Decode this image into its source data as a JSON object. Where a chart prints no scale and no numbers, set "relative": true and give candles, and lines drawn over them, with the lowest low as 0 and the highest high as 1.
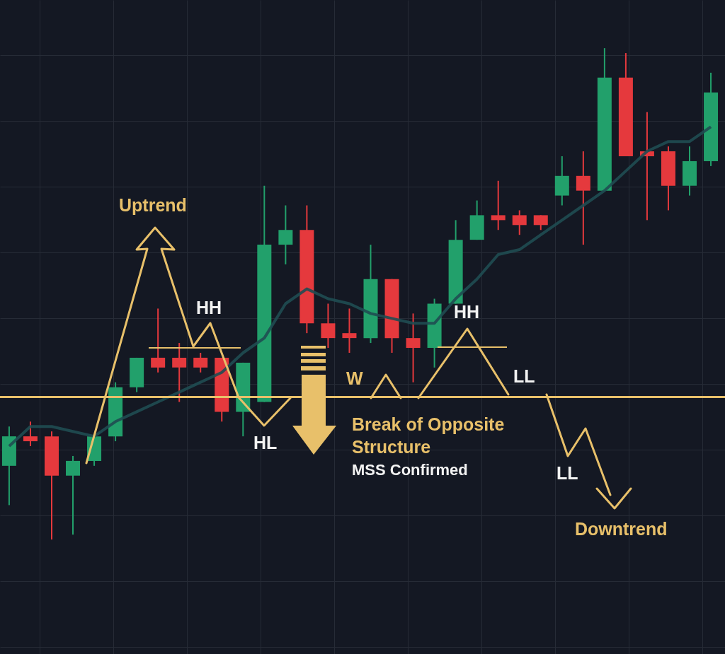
{
  "chart_data": {
    "type": "candlestick",
    "relative": true,
    "grid": true,
    "tick_labels": false,
    "categories": [
      null,
      null,
      null,
      null,
      null,
      null,
      null,
      null,
      null,
      null,
      null,
      null,
      null,
      null,
      null,
      null,
      null,
      null,
      null,
      null,
      null,
      null,
      null,
      null,
      null,
      null,
      null,
      null,
      null,
      null,
      null,
      null,
      null,
      null
    ],
    "ohlc": [
      [
        0.15,
        0.23,
        0.07,
        0.21
      ],
      [
        0.21,
        0.24,
        0.19,
        0.2
      ],
      [
        0.21,
        0.22,
        0,
        0.13
      ],
      [
        0.13,
        0.17,
        0.01,
        0.16
      ],
      [
        0.16,
        0.21,
        0.15,
        0.21
      ],
      [
        0.21,
        0.32,
        0.2,
        0.31
      ],
      [
        0.31,
        0.37,
        0.3,
        0.37
      ],
      [
        0.37,
        0.47,
        0.34,
        0.35
      ],
      [
        0.37,
        0.4,
        0.28,
        0.35
      ],
      [
        0.37,
        0.38,
        0.34,
        0.35
      ],
      [
        0.37,
        0.37,
        0.24,
        0.26
      ],
      [
        0.26,
        0.36,
        0.21,
        0.36
      ],
      [
        0.28,
        0.72,
        0.28,
        0.6
      ],
      [
        0.6,
        0.68,
        0.56,
        0.63
      ],
      [
        0.63,
        0.68,
        0.42,
        0.44
      ],
      [
        0.44,
        0.48,
        0.39,
        0.41
      ],
      [
        0.42,
        0.47,
        0.38,
        0.41
      ],
      [
        0.41,
        0.6,
        0.4,
        0.53
      ],
      [
        0.53,
        0.53,
        0.38,
        0.41
      ],
      [
        0.41,
        0.46,
        0.32,
        0.39
      ],
      [
        0.39,
        0.49,
        0.35,
        0.48
      ],
      [
        0.48,
        0.65,
        0.48,
        0.61
      ],
      [
        0.61,
        0.69,
        0.61,
        0.66
      ],
      [
        0.66,
        0.73,
        0.63,
        0.65
      ],
      [
        0.66,
        0.67,
        0.62,
        0.64
      ],
      [
        0.66,
        0.66,
        0.63,
        0.64
      ],
      [
        0.7,
        0.78,
        0.68,
        0.74
      ],
      [
        0.74,
        0.79,
        0.6,
        0.71
      ],
      [
        0.71,
        1,
        0.71,
        0.94
      ],
      [
        0.94,
        0.99,
        0.78,
        0.78
      ],
      [
        0.79,
        0.87,
        0.65,
        0.78
      ],
      [
        0.79,
        0.8,
        0.67,
        0.72
      ],
      [
        0.72,
        0.8,
        0.7,
        0.77
      ],
      [
        0.77,
        0.95,
        0.76,
        0.91
      ]
    ],
    "colors": [
      "#22a06b",
      "#e5393d",
      "#e5393d",
      "#22a06b",
      "#22a06b",
      "#22a06b",
      "#22a06b",
      "#e5393d",
      "#e5393d",
      "#e5393d",
      "#e5393d",
      "#22a06b",
      "#22a06b",
      "#22a06b",
      "#e5393d",
      "#e5393d",
      "#e5393d",
      "#22a06b",
      "#e5393d",
      "#e5393d",
      "#22a06b",
      "#22a06b",
      "#22a06b",
      "#e5393d",
      "#e5393d",
      "#e5393d",
      "#22a06b",
      "#e5393d",
      "#22a06b",
      "#e5393d",
      "#e5393d",
      "#e5393d",
      "#22a06b",
      "#22a06b"
    ],
    "series": [
      {
        "type": "line",
        "color": "#1f4d52",
        "values": [
          0.19,
          0.23,
          0.23,
          0.22,
          0.21,
          0.24,
          0.26,
          0.28,
          0.3,
          0.32,
          0.34,
          0.38,
          0.41,
          0.48,
          0.51,
          0.49,
          0.48,
          0.46,
          0.45,
          0.44,
          0.44,
          0.49,
          0.53,
          0.58,
          0.59,
          0.62,
          0.65,
          0.68,
          0.71,
          0.75,
          0.79,
          0.81,
          0.81,
          0.84
        ]
      }
    ],
    "ref_lines": [
      {
        "axis": "y",
        "value": 0.29,
        "color": "#e8c06a"
      }
    ],
    "annotations": [
      "Uptrend",
      "HH",
      "HL",
      "W",
      "HH",
      "LL",
      "Break of Opposite Structure",
      "MSS Confirmed",
      "LL",
      "Downtrend"
    ]
  }
}
